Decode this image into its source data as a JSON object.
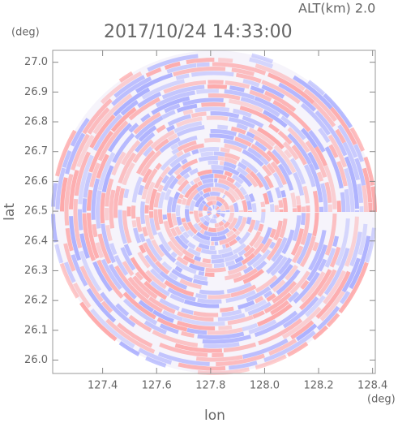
{
  "chart_data": {
    "type": "image",
    "title": "2017/10/24 14:33:00",
    "subtitle": "ALT(km) 2.0",
    "x_label": "lon",
    "y_label": "lat",
    "x_unit": "(deg)",
    "y_unit": "(deg)",
    "xlim": [
      127.215,
      128.41
    ],
    "ylim": [
      25.955,
      27.04
    ],
    "xticks": [
      127.4,
      127.6,
      127.8,
      {
        "value": 128.0,
        "label": "128.0"
      },
      128.2,
      128.4
    ],
    "yticks": [
      {
        "value": 26.0,
        "label": "26.0"
      },
      26.1,
      26.2,
      26.3,
      26.4,
      26.5,
      26.6,
      26.7,
      26.8,
      26.9,
      {
        "value": 27.0,
        "label": "27.0"
      }
    ]
  }
}
